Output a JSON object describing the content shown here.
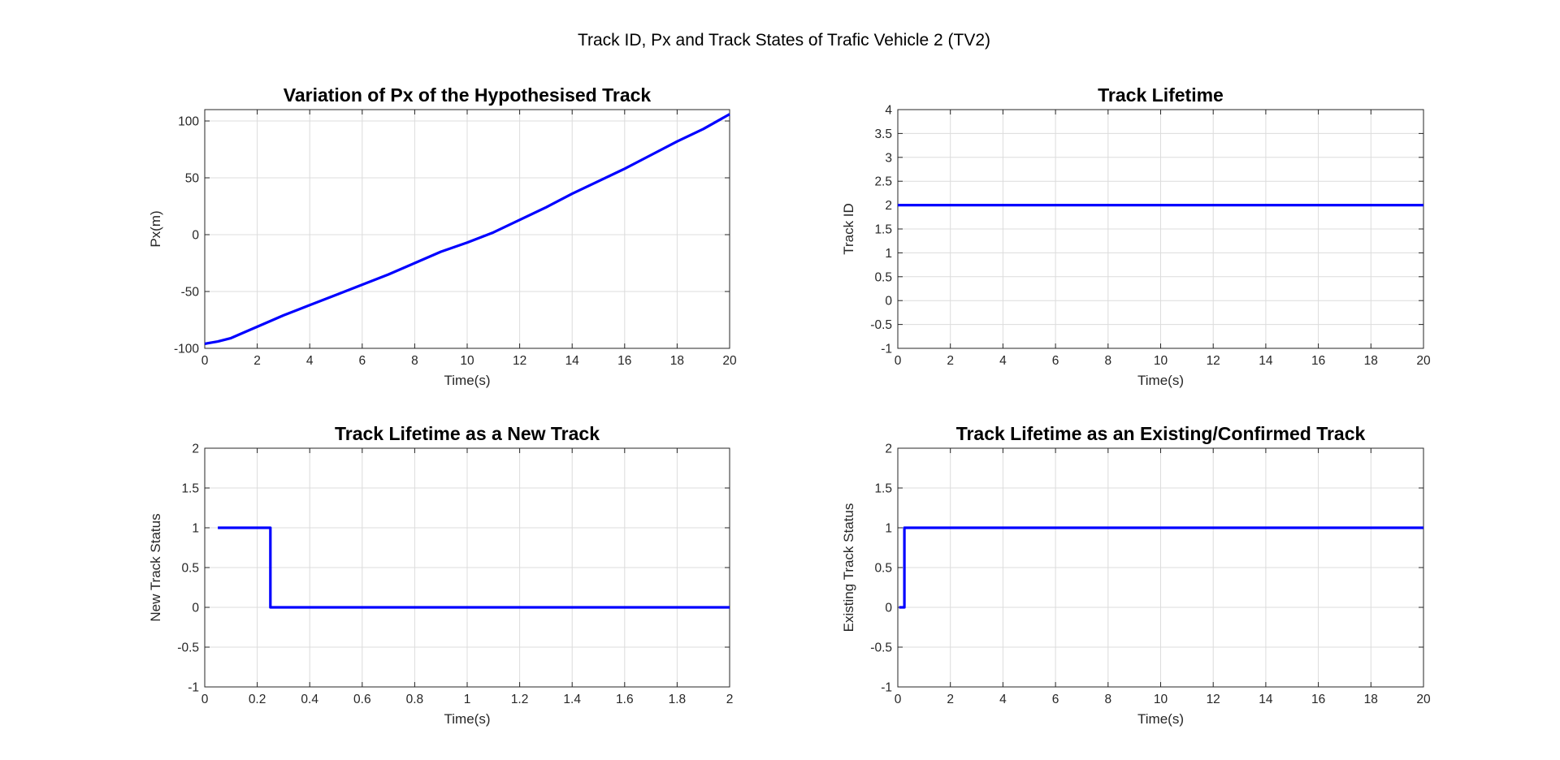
{
  "figure": {
    "title": "Track ID, Px and Track States of Trafic Vehicle 2 (TV2)",
    "line_color": "#0000ff"
  },
  "chart_data": [
    {
      "type": "line",
      "title": "Variation of Px of the Hypothesised Track",
      "xlabel": "Time(s)",
      "ylabel": "Px(m)",
      "xlim": [
        0,
        20
      ],
      "ylim": [
        -100,
        100
      ],
      "yaxis_top_extent": 110,
      "xticks": [
        0,
        2,
        4,
        6,
        8,
        10,
        12,
        14,
        16,
        18,
        20
      ],
      "yticks": [
        -100,
        -50,
        0,
        50,
        100
      ],
      "grid": true,
      "series": [
        {
          "x": [
            0,
            0.5,
            1,
            1.5,
            2,
            2.5,
            3,
            4,
            5,
            6,
            7,
            8,
            9,
            10,
            11,
            12,
            13,
            14,
            15,
            16,
            17,
            18,
            19,
            20
          ],
          "y": [
            -96,
            -94,
            -91,
            -86,
            -81,
            -76,
            -71,
            -62,
            -53,
            -44,
            -35,
            -25,
            -15,
            -7,
            2,
            13,
            24,
            36,
            47,
            58,
            70,
            82,
            93,
            106
          ]
        }
      ]
    },
    {
      "type": "line",
      "title": "Track Lifetime",
      "xlabel": "Time(s)",
      "ylabel": "Track ID",
      "xlim": [
        0,
        20
      ],
      "ylim": [
        -1,
        4
      ],
      "xticks": [
        0,
        2,
        4,
        6,
        8,
        10,
        12,
        14,
        16,
        18,
        20
      ],
      "yticks": [
        -1,
        -0.5,
        0,
        0.5,
        1,
        1.5,
        2,
        2.5,
        3,
        3.5,
        4
      ],
      "grid": true,
      "series": [
        {
          "x": [
            0,
            20
          ],
          "y": [
            2,
            2
          ]
        }
      ]
    },
    {
      "type": "line",
      "title": "Track Lifetime as a New Track",
      "xlabel": "Time(s)",
      "ylabel": "New Track Status",
      "xlim": [
        0,
        2
      ],
      "ylim": [
        -1,
        2
      ],
      "xticks": [
        0,
        0.2,
        0.4,
        0.6,
        0.8,
        1,
        1.2,
        1.4,
        1.6,
        1.8,
        2
      ],
      "yticks": [
        -1,
        -0.5,
        0,
        0.5,
        1,
        1.5,
        2
      ],
      "grid": true,
      "series": [
        {
          "x": [
            0.05,
            0.25,
            0.25,
            2
          ],
          "y": [
            1,
            1,
            0,
            0
          ]
        }
      ]
    },
    {
      "type": "line",
      "title": "Track Lifetime as an Existing/Confirmed Track",
      "xlabel": "Time(s)",
      "ylabel": "Existing Track Status",
      "xlim": [
        0,
        20
      ],
      "ylim": [
        -1,
        2
      ],
      "xticks": [
        0,
        2,
        4,
        6,
        8,
        10,
        12,
        14,
        16,
        18,
        20
      ],
      "yticks": [
        -1,
        -0.5,
        0,
        0.5,
        1,
        1.5,
        2
      ],
      "grid": true,
      "series": [
        {
          "x": [
            0.05,
            0.25,
            0.25,
            20
          ],
          "y": [
            0,
            0,
            1,
            1
          ]
        }
      ]
    }
  ]
}
